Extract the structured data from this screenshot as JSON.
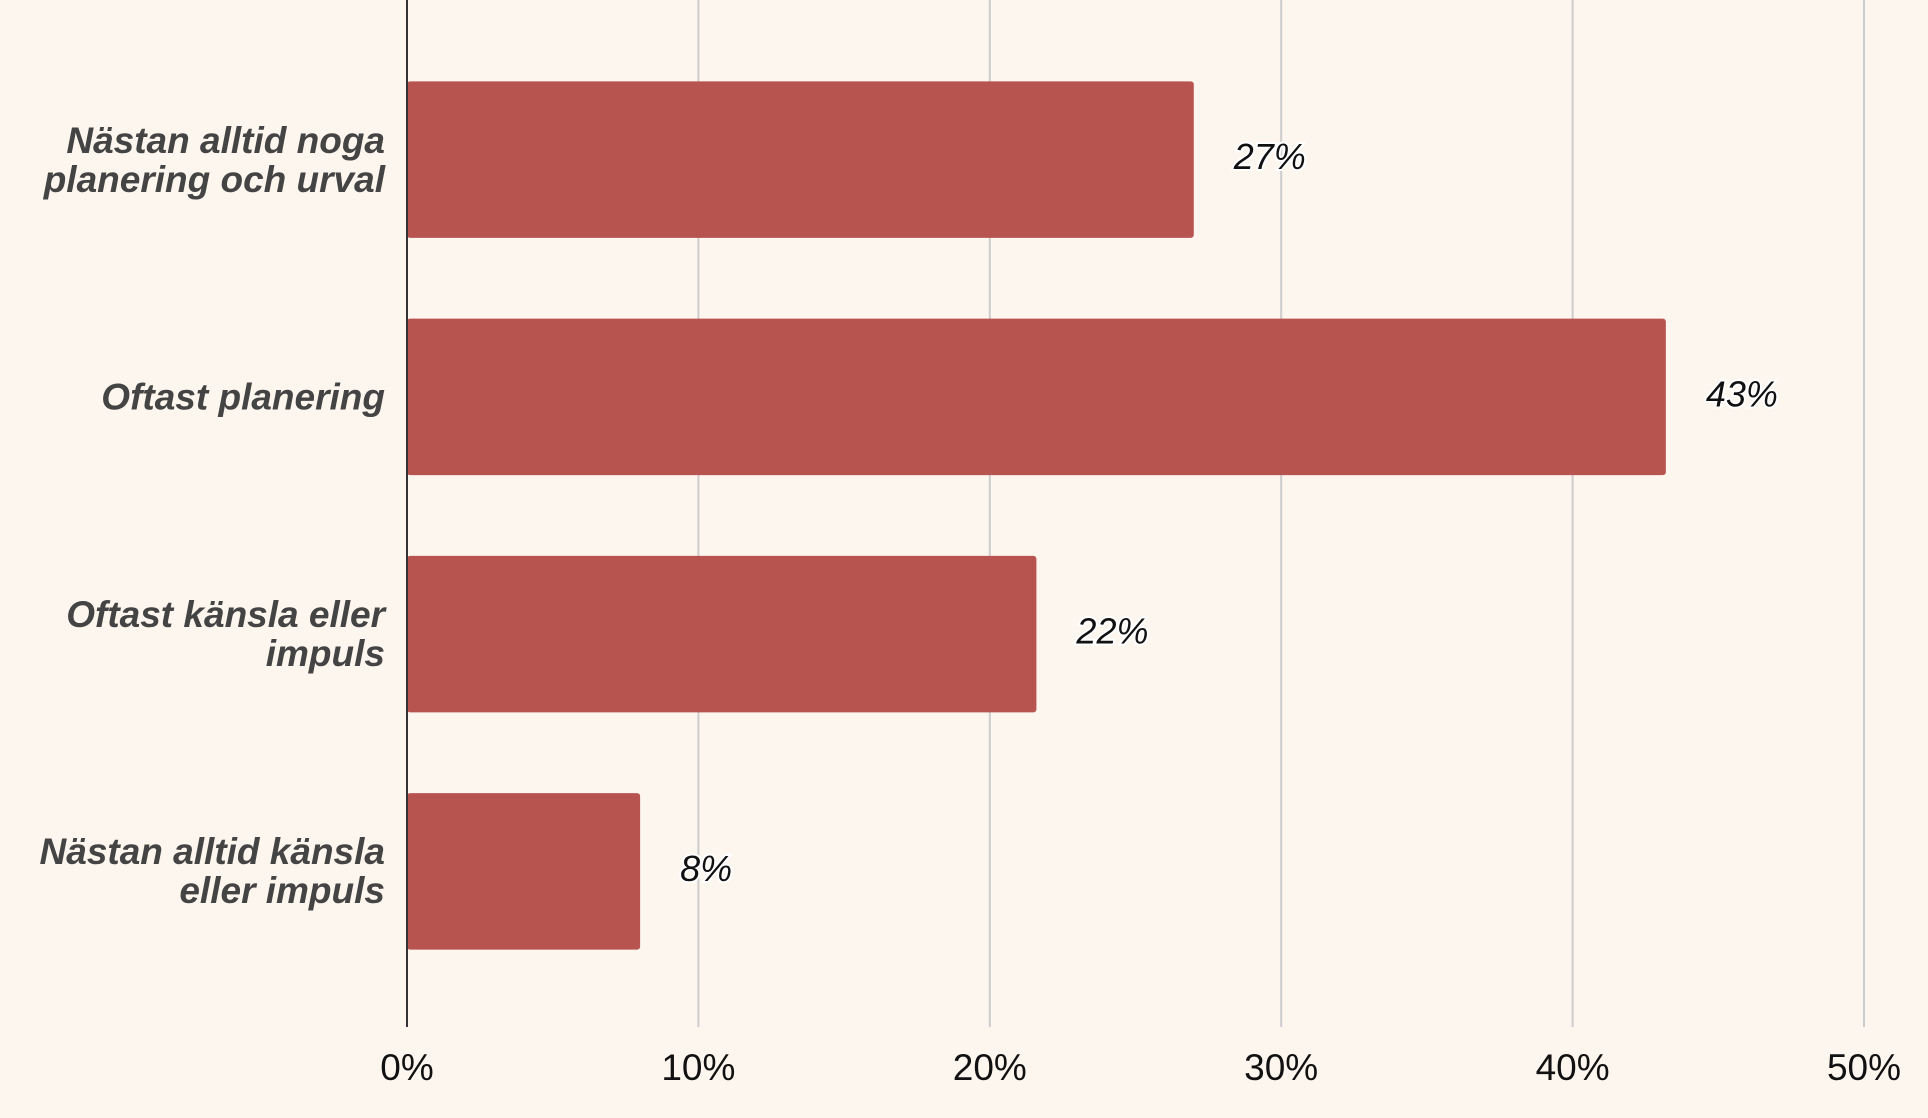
{
  "chart_data": {
    "type": "bar",
    "orientation": "horizontal",
    "categories": [
      "Nästan alltid noga planering och urval",
      "Oftast planering",
      "Oftast känsla eller impuls",
      "Nästan alltid känsla eller impuls"
    ],
    "values": [
      27,
      43.2,
      21.6,
      8
    ],
    "value_labels": [
      "27%",
      "43%",
      "22%",
      "8%"
    ],
    "color": "#b85450",
    "xlim": [
      0,
      50
    ],
    "xticks": [
      {
        "value": 0,
        "label": "0%"
      },
      {
        "value": 10,
        "label": "10%"
      },
      {
        "value": 20,
        "label": "20%"
      },
      {
        "value": 30,
        "label": "30%"
      },
      {
        "value": 40,
        "label": "40%"
      },
      {
        "value": 50,
        "label": "50%"
      }
    ],
    "grid": true
  }
}
